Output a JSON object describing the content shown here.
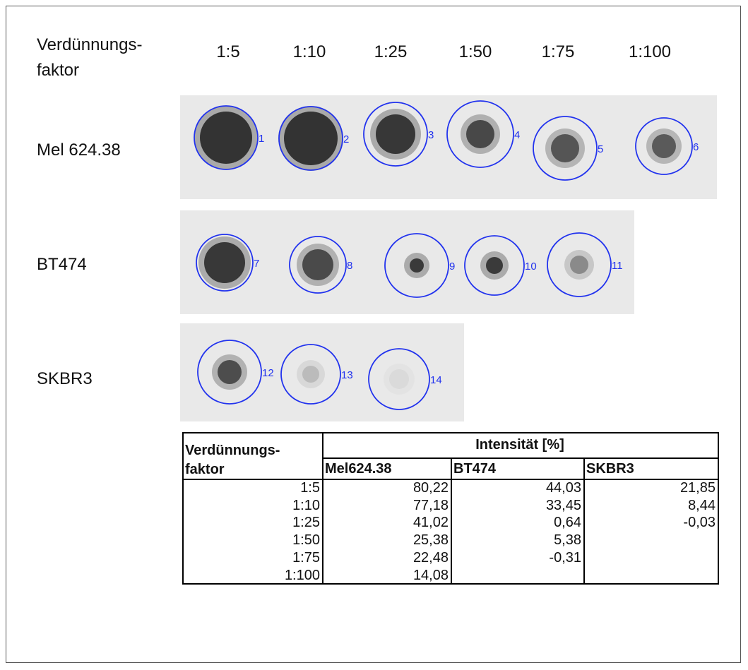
{
  "blot": {
    "header_label": [
      "Verdünnungs-",
      "faktor"
    ],
    "dilutions": [
      "1:5",
      "1:10",
      "1:25",
      "1:50",
      "1:75",
      "1:100"
    ],
    "rows": [
      {
        "label": "Mel 624.38",
        "spots": [
          "1",
          "2",
          "3",
          "4",
          "5",
          "6"
        ]
      },
      {
        "label": "BT474",
        "spots": [
          "7",
          "8",
          "9",
          "10",
          "11"
        ]
      },
      {
        "label": "SKBR3",
        "spots": [
          "12",
          "13",
          "14"
        ]
      }
    ]
  },
  "table": {
    "header_label": [
      "Verdünnungs-",
      "faktor"
    ],
    "group_header": "Intensität [%]",
    "columns": [
      "Mel624.38",
      "BT474",
      "SKBR3"
    ],
    "rows": [
      [
        "1:5",
        "80,22",
        "44,03",
        "21,85"
      ],
      [
        "1:10",
        "77,18",
        "33,45",
        "8,44"
      ],
      [
        "1:25",
        "41,02",
        "0,64",
        "-0,03"
      ],
      [
        "1:50",
        "25,38",
        "5,38"
      ],
      [
        "1:75",
        "22,48",
        "-0,31"
      ],
      [
        "1:100",
        "14,08"
      ]
    ]
  }
}
